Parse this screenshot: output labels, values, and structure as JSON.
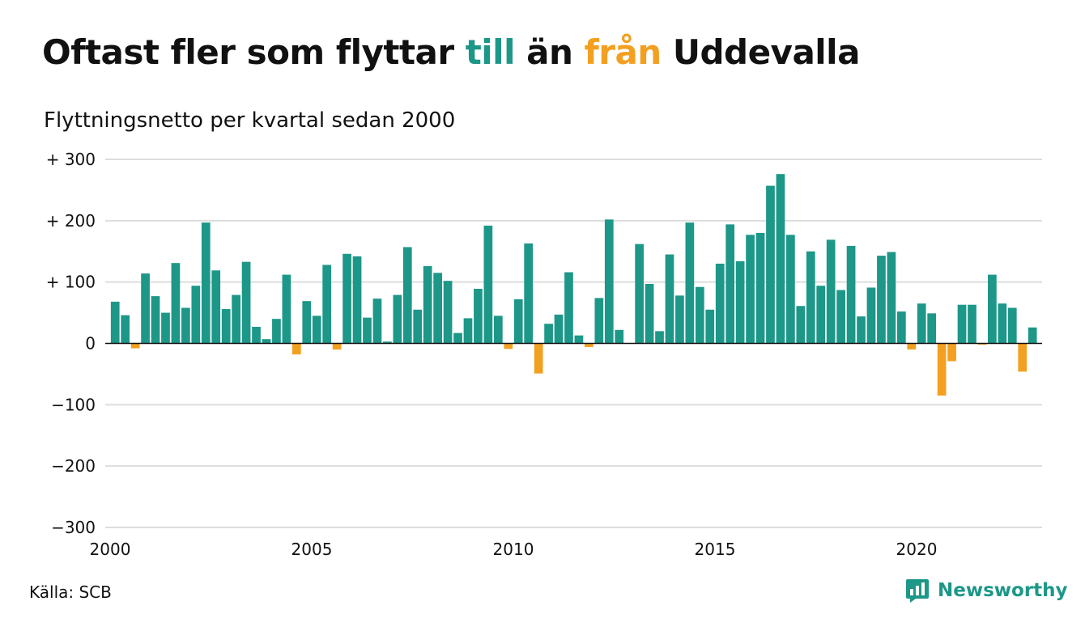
{
  "title": {
    "part1": "Oftast fler som flyttar ",
    "to_word": "till",
    "part2": " än ",
    "from_word": "från",
    "part3": " Uddevalla"
  },
  "subtitle": "Flyttningsnetto per kvartal sedan 2000",
  "source": "Källa: SCB",
  "brand": {
    "name": "Newsworthy",
    "icon": "newsworthy-logo-icon"
  },
  "colors": {
    "positive": "#1d9788",
    "negative": "#f3a020",
    "grid": "#dddddd",
    "text": "#111111"
  },
  "chart_data": {
    "type": "bar",
    "x_start": 2000,
    "periods_per_year": 4,
    "xticks": [
      "2000",
      "2005",
      "2010",
      "2015",
      "2020"
    ],
    "yticks": [
      {
        "value": 300,
        "label": "+ 300"
      },
      {
        "value": 200,
        "label": "+ 200"
      },
      {
        "value": 100,
        "label": "+ 100"
      },
      {
        "value": 0,
        "label": "0"
      },
      {
        "value": -100,
        "label": "−100"
      },
      {
        "value": -200,
        "label": "−200"
      },
      {
        "value": -300,
        "label": "−300"
      }
    ],
    "ylim": [
      -300,
      300
    ],
    "grid": true,
    "values": [
      68,
      46,
      -8,
      114,
      77,
      50,
      131,
      58,
      94,
      197,
      119,
      56,
      79,
      133,
      27,
      7,
      40,
      112,
      -18,
      69,
      45,
      128,
      -10,
      146,
      142,
      42,
      73,
      3,
      79,
      157,
      55,
      126,
      115,
      102,
      17,
      41,
      89,
      192,
      45,
      -9,
      72,
      163,
      -49,
      32,
      47,
      116,
      13,
      -6,
      74,
      202,
      22,
      0,
      162,
      97,
      20,
      145,
      78,
      197,
      92,
      55,
      130,
      194,
      134,
      177,
      180,
      257,
      276,
      177,
      61,
      150,
      94,
      169,
      87,
      159,
      44,
      91,
      143,
      149,
      52,
      -10,
      65,
      49,
      -85,
      -29,
      63,
      63,
      -2,
      112,
      65,
      58,
      -46,
      26
    ]
  }
}
